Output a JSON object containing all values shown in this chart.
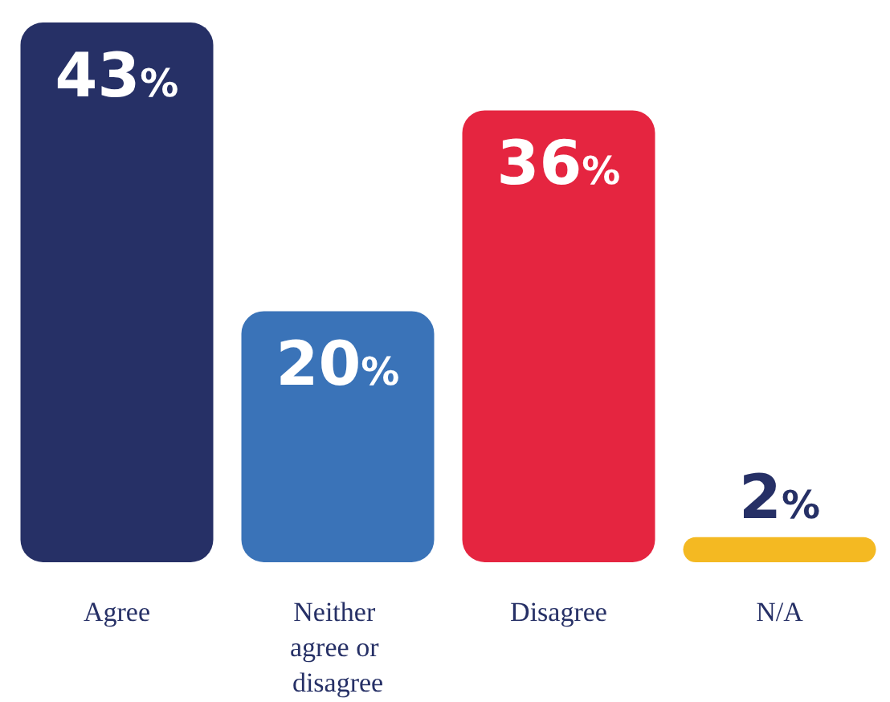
{
  "chart_data": {
    "type": "bar",
    "categories": [
      "Agree",
      "Neither agree or disagree",
      "Disagree",
      "N/A"
    ],
    "values": [
      43,
      20,
      36,
      2
    ],
    "colors": [
      "#263066",
      "#3a73b8",
      "#e52540",
      "#f4b922"
    ],
    "value_labels": [
      "43%",
      "20%",
      "36%",
      "2%"
    ],
    "tick_labels": "x"
  }
}
